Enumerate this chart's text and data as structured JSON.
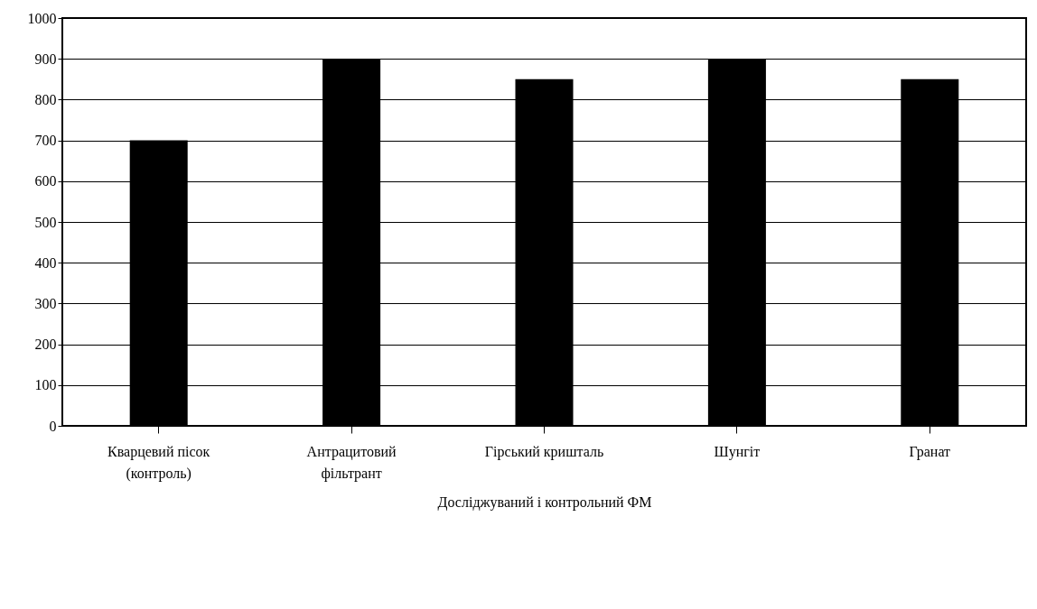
{
  "chart_data": {
    "type": "bar",
    "xlabel": "Досліджуваний і контрольний ФМ",
    "categories": [
      "Кварцевий пісок (контроль)",
      "Антрацитовий фільтрант",
      "Гірський кришталь",
      "Шунгіт",
      "Гранат"
    ],
    "values": [
      700,
      900,
      850,
      900,
      850
    ],
    "color": "#000000",
    "ylim": [
      0,
      1000
    ],
    "yticks": [
      0,
      100,
      200,
      300,
      400,
      500,
      600,
      700,
      800,
      900,
      1000
    ],
    "grid": "y"
  }
}
